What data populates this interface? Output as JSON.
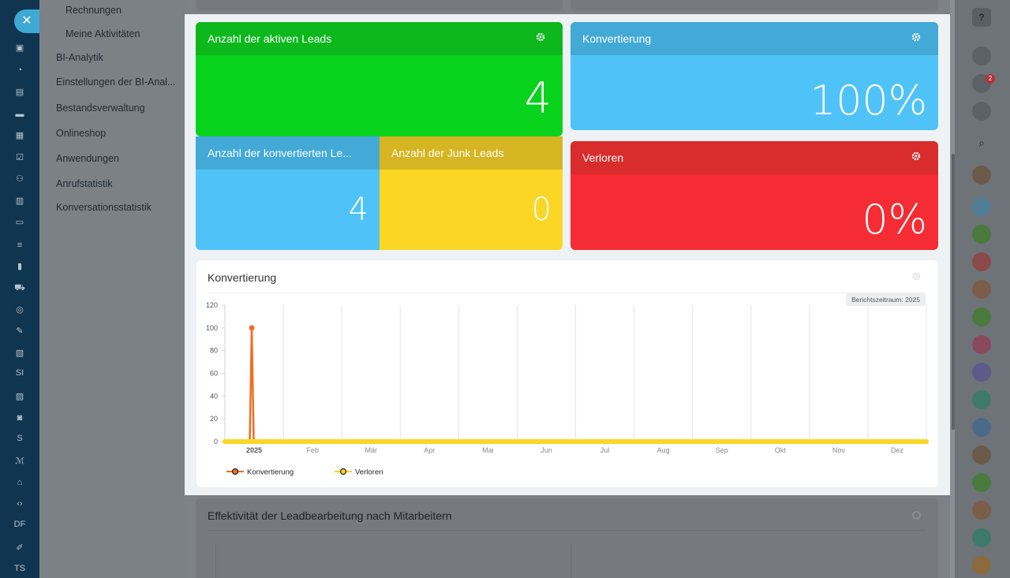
{
  "leftnav": {
    "items": [
      "SI",
      "S",
      "DF",
      "TS"
    ]
  },
  "menu": {
    "items": [
      "Rechnungen",
      "Meine Aktivitäten",
      "BI-Analytik",
      "Einstellungen der BI-Anal...",
      "Bestandsverwaltung",
      "Onlineshop",
      "Anwendungen",
      "Anrufstatistik",
      "Konversationsstatistik"
    ]
  },
  "tiles": {
    "active_leads": {
      "title": "Anzahl der aktiven Leads",
      "value": "4",
      "color": "#07d21c"
    },
    "converted_leads": {
      "title": "Anzahl der konvertierten Le...",
      "value": "4",
      "color": "#4fc3f7"
    },
    "junk_leads": {
      "title": "Anzahl der Junk Leads",
      "value": "0",
      "color": "#fbd625"
    },
    "conversion": {
      "title": "Konvertierung",
      "value": "100%",
      "color": "#4fc3f7"
    },
    "lost": {
      "title": "Verloren",
      "value": "0%",
      "color": "#f52c34"
    }
  },
  "chart_card": {
    "title": "Konvertierung",
    "period": "Berichtszeitraum: 2025"
  },
  "chart_data": {
    "type": "line",
    "title": "Konvertierung",
    "x": [
      "2025",
      "Feb",
      "Mär",
      "Apr",
      "Mai",
      "Jun",
      "Jul",
      "Aug",
      "Sep",
      "Okt",
      "Nov",
      "Dez"
    ],
    "yticks": [
      0,
      20,
      40,
      60,
      80,
      100,
      120
    ],
    "ylim": [
      0,
      120
    ],
    "series": [
      {
        "name": "Konvertierung",
        "color": "#f26d21",
        "spike": {
          "value": 100,
          "at": "2025"
        },
        "values": [
          0,
          0,
          0,
          0,
          0,
          0,
          0,
          0,
          0,
          0,
          0,
          0
        ]
      },
      {
        "name": "Verloren",
        "color": "#fbd625",
        "values": [
          0,
          0,
          0,
          0,
          0,
          0,
          0,
          0,
          0,
          0,
          0,
          0
        ]
      }
    ],
    "legend": "bottom-left",
    "grid": true
  },
  "lower_card": {
    "title": "Effektivität der Leadbearbeitung nach Mitarbeitern"
  },
  "rightbar": {
    "badge": "2"
  }
}
